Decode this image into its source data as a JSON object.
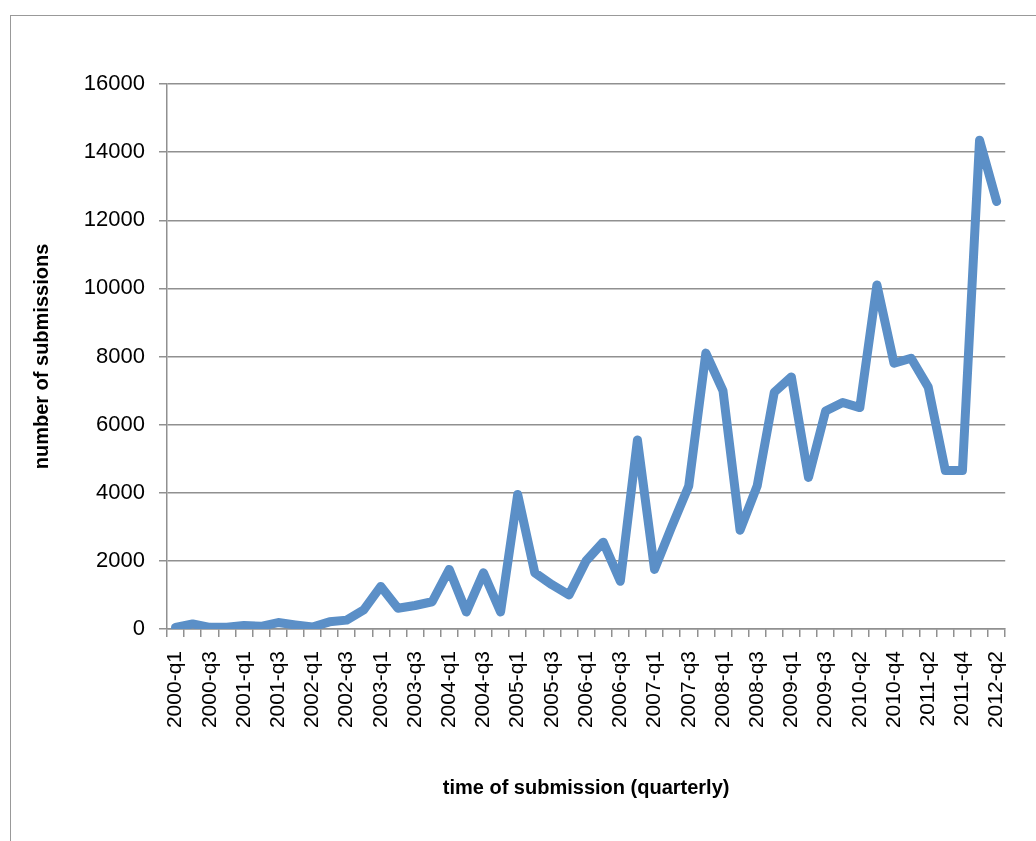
{
  "chart_data": {
    "type": "line",
    "xlabel": "time of submission (quarterly)",
    "ylabel": "number of submissions",
    "categories": [
      "2000-q1",
      null,
      "2000-q3",
      null,
      "2001-q1",
      null,
      "2001-q3",
      null,
      "2002-q1",
      null,
      "2002-q3",
      null,
      "2003-q1",
      null,
      "2003-q3",
      null,
      "2004-q1",
      null,
      "2004-q3",
      null,
      "2005-q1",
      null,
      "2005-q3",
      null,
      "2006-q1",
      null,
      "2006-q3",
      null,
      "2007-q1",
      null,
      "2007-q3",
      null,
      "2008-q1",
      null,
      "2008-q3",
      null,
      "2009-q1",
      null,
      "2009-q3",
      null,
      "2010-q2",
      null,
      "2010-q4",
      null,
      "2011-q2",
      null,
      "2011-q4",
      null,
      "2012-q2"
    ],
    "values": [
      50,
      150,
      50,
      50,
      100,
      80,
      190,
      120,
      60,
      210,
      260,
      560,
      1250,
      610,
      690,
      800,
      1750,
      500,
      1650,
      500,
      3950,
      1650,
      1300,
      1000,
      2000,
      2550,
      1400,
      5550,
      1750,
      3000,
      4200,
      8100,
      7000,
      2900,
      4200,
      6950,
      7400,
      4450,
      6400,
      6650,
      6500,
      10100,
      7800,
      7950,
      7100,
      4650,
      4650,
      14350,
      12550
    ],
    "color": "#5b8fc7",
    "ylim": [
      0,
      16000
    ],
    "yticks": [
      0,
      2000,
      4000,
      6000,
      8000,
      10000,
      12000,
      14000,
      16000
    ],
    "grid": "y",
    "marker": "none",
    "line_style": "solid"
  }
}
